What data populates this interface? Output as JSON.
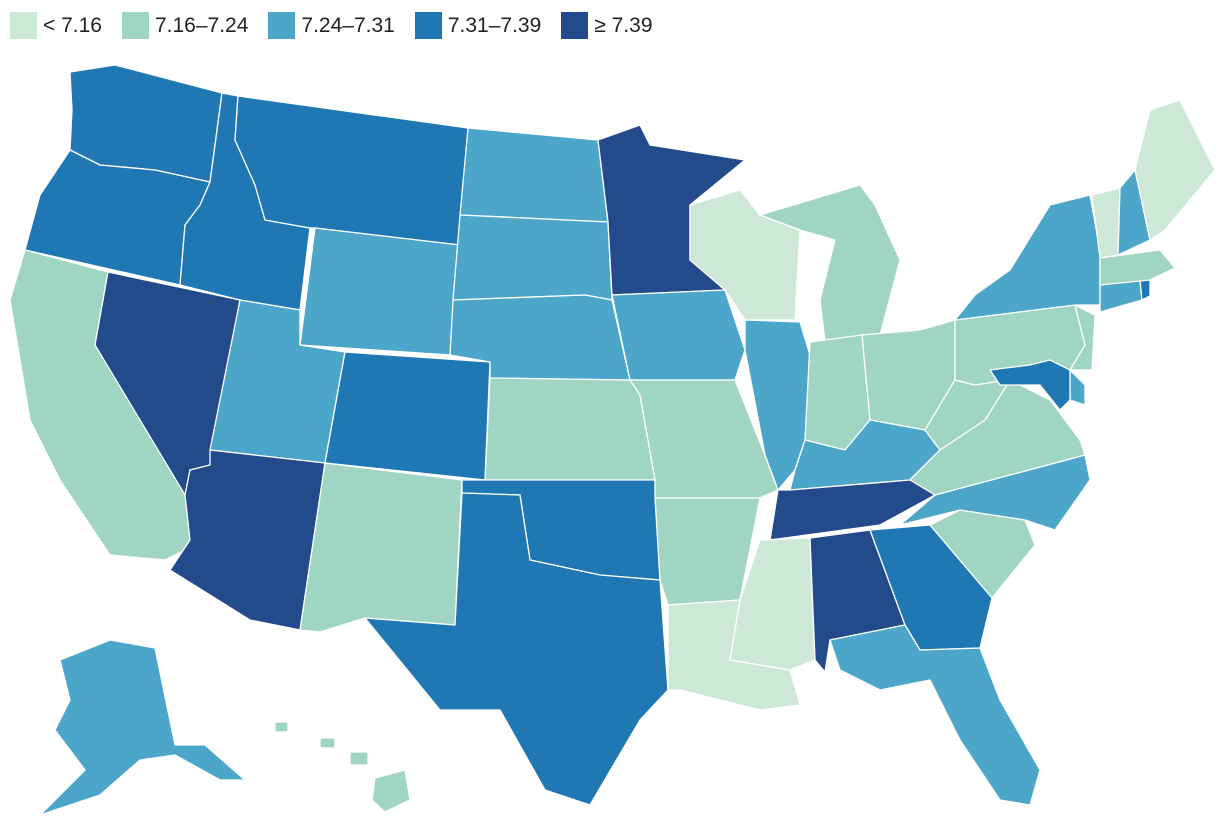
{
  "legend": [
    {
      "label": "< 7.16",
      "color": "#cde8d7"
    },
    {
      "label": "7.16–7.24",
      "color": "#9fd5c2"
    },
    {
      "label": "7.24–7.31",
      "color": "#4ba6c9"
    },
    {
      "label": "7.31–7.39",
      "color": "#1f77b4"
    },
    {
      "label": "≥ 7.39",
      "color": "#234a8b"
    }
  ],
  "chart_data": {
    "type": "choropleth",
    "bins": [
      "< 7.16",
      "7.16–7.24",
      "7.24–7.31",
      "7.31–7.39",
      "≥ 7.39"
    ],
    "regions": {
      "WA": 3,
      "OR": 3,
      "CA": 1,
      "NV": 4,
      "ID": 3,
      "MT": 3,
      "WY": 2,
      "UT": 2,
      "AZ": 4,
      "CO": 3,
      "NM": 1,
      "ND": 2,
      "SD": 2,
      "NE": 2,
      "KS": 1,
      "OK": 3,
      "TX": 3,
      "MN": 4,
      "IA": 2,
      "MO": 1,
      "AR": 1,
      "LA": 0,
      "WI": 0,
      "IL": 2,
      "MI": 1,
      "IN": 1,
      "OH": 1,
      "KY": 2,
      "TN": 4,
      "MS": 0,
      "AL": 4,
      "GA": 3,
      "FL": 2,
      "SC": 1,
      "NC": 2,
      "VA": 1,
      "WV": 1,
      "PA": 1,
      "NY": 2,
      "VT": 0,
      "NH": 2,
      "ME": 0,
      "MA": 1,
      "RI": 3,
      "CT": 2,
      "NJ": 1,
      "DE": 2,
      "MD": 3,
      "AK": 2,
      "HI": 1
    }
  }
}
